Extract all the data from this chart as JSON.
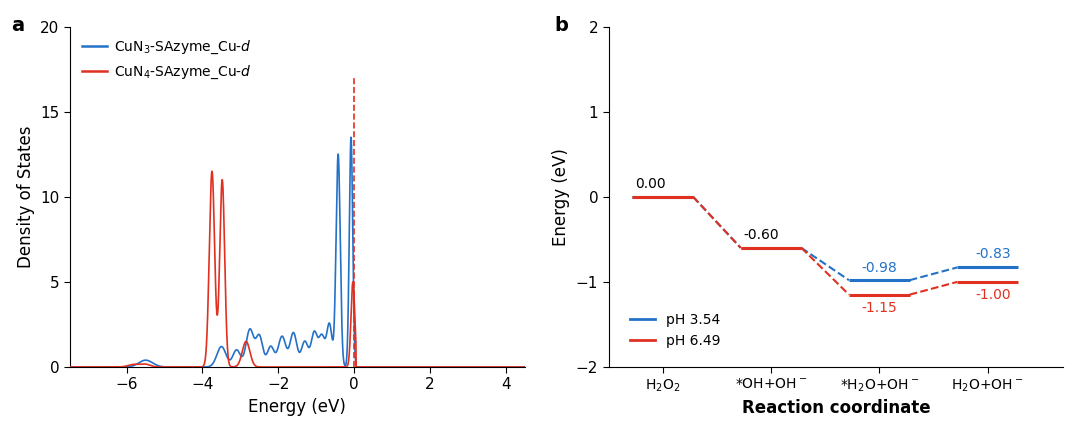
{
  "panel_a": {
    "xlabel": "Energy (eV)",
    "ylabel": "Density of States",
    "xlim": [
      -7.5,
      4.5
    ],
    "ylim": [
      0,
      20
    ],
    "yticks": [
      0,
      5,
      10,
      15,
      20
    ],
    "xticks": [
      -6,
      -4,
      -2,
      0,
      2,
      4
    ],
    "blue_color": "#2471c8",
    "red_color": "#e03020",
    "vline_x": 0.0
  },
  "panel_b": {
    "xlabel": "Reaction coordinate",
    "ylabel": "Energy (eV)",
    "xlim": [
      -0.5,
      3.7
    ],
    "ylim": [
      -2,
      2
    ],
    "yticks": [
      -2,
      -1,
      0,
      1,
      2
    ],
    "x_positions": [
      0,
      1,
      2,
      3
    ],
    "blue_values": [
      0.0,
      -0.6,
      -0.98,
      -0.83
    ],
    "red_values": [
      0.0,
      -0.6,
      -1.15,
      -1.0
    ],
    "blue_color": "#2471c8",
    "red_color": "#e03020",
    "blue_label": "pH 3.54",
    "red_label": "pH 6.49",
    "label_0": "0.00",
    "label_1": "-0.60",
    "blue_label_2": "-0.98",
    "red_label_2": "-1.15",
    "blue_label_3": "-0.83",
    "red_label_3": "-1.00"
  }
}
